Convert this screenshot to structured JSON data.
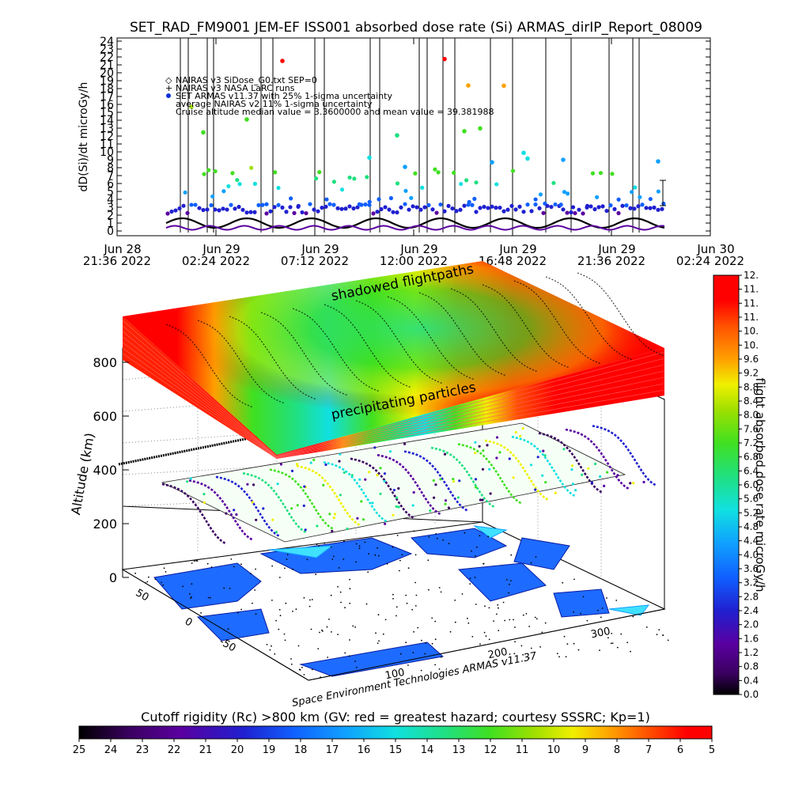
{
  "title": "SET_RAD_FM9001  JEM-EF ISS001 absorbed dose rate (Si) ARMAS_dirIP_Report_08009",
  "chart_data": [
    {
      "type": "scatter",
      "ylabel": "dD(Si)/dt microGy/h",
      "ylim": [
        0,
        24
      ],
      "y_ticks": [
        "0",
        "1",
        "2",
        "3",
        "4",
        "5",
        "6",
        "7",
        "8",
        "9",
        "10",
        "11",
        "12",
        "13",
        "14",
        "15",
        "16",
        "17",
        "18",
        "19",
        "20",
        "21",
        "22",
        "23",
        "24"
      ],
      "x_ticks": [
        {
          "line1": "Jun 28",
          "line2": "21:36 2022"
        },
        {
          "line1": "Jun 29",
          "line2": "02:24 2022"
        },
        {
          "line1": "Jun 29",
          "line2": "07:12 2022"
        },
        {
          "line1": "Jun 29",
          "line2": "12:00 2022"
        },
        {
          "line1": "Jun 29",
          "line2": "16:48 2022"
        },
        {
          "line1": "Jun 29",
          "line2": "21:36 2022"
        },
        {
          "line1": "Jun 30",
          "line2": "02:24 2022"
        }
      ],
      "legend": [
        {
          "symbol": "◇",
          "text": "NAIRAS v3 SiDose_G0.txt SEP=0"
        },
        {
          "symbol": "+",
          "text": "NAIRAS v3 NASA LaRC runs"
        },
        {
          "symbol": "●",
          "text": "SET ARMAS v11.37 with 25% 1-sigma uncertainty"
        },
        {
          "symbol": "",
          "text": "average NAIRAS v2 11% 1-sigma uncertainty"
        },
        {
          "symbol": "",
          "text": "Cruise altitude median value = 3.3600000 and mean value = 39.381988"
        }
      ],
      "legend_placement": "top-left",
      "grid": false,
      "series": [
        {
          "name": "NAIRAS v3 SiDose_G0.txt SEP=0",
          "marker": "diamond",
          "color": "#000000",
          "description_level": "~0.5-1.5 oscillating"
        },
        {
          "name": "NAIRAS v3 NASA LaRC runs",
          "marker": "plus",
          "color": "#000000"
        },
        {
          "name": "SET ARMAS v11.37 with 25% 1-sigma uncertainty",
          "marker": "circle",
          "color": "#1030e0"
        }
      ]
    },
    {
      "type": "3d-surface",
      "zlabel": "Altitude (km)",
      "z_ticks": [
        "0",
        "200",
        "400",
        "600",
        "800"
      ],
      "lon_ticks": [
        "100",
        "200",
        "300"
      ],
      "lat_ticks": [
        "50",
        "0",
        "-50"
      ],
      "annotations": [
        "shadowed flightpaths",
        "precipitating particles"
      ],
      "right_colorbar": {
        "label": "flight absorbed dose rate microGy/h",
        "ticks": [
          "0.0",
          "0.4",
          "0.8",
          "1.2",
          "1.6",
          "2.0",
          "2.4",
          "2.8",
          "3.2",
          "3.6",
          "4.0",
          "4.4",
          "4.8",
          "5.2",
          "5.6",
          "6.0",
          "6.4",
          "6.8",
          "7.2",
          "7.6",
          "8.0",
          "8.4",
          "8.8",
          "9.2",
          "9.6",
          "10.",
          "10.",
          "11.",
          "11.",
          "11.",
          "12."
        ]
      },
      "bottom_colorbar": {
        "label": "Cutoff rigidity (Rc) >800 km (GV: red = greatest hazard; courtesy SSSRC; Kp=1)",
        "ticks": [
          "25",
          "24",
          "23",
          "22",
          "21",
          "20",
          "19",
          "18",
          "17",
          "16",
          "15",
          "14",
          "13",
          "12",
          "11",
          "10",
          "9",
          "8",
          "7",
          "6",
          "5"
        ]
      },
      "credit": "Space Environment Technologies ARMAS v11.37"
    }
  ],
  "colors": {
    "scale": [
      "#000000",
      "#3a0060",
      "#5a00a0",
      "#2020d0",
      "#1060ff",
      "#10a0ff",
      "#10e0e0",
      "#20e080",
      "#40e020",
      "#a0e000",
      "#f0f000",
      "#ffa000",
      "#ff5000",
      "#ff0000"
    ]
  }
}
